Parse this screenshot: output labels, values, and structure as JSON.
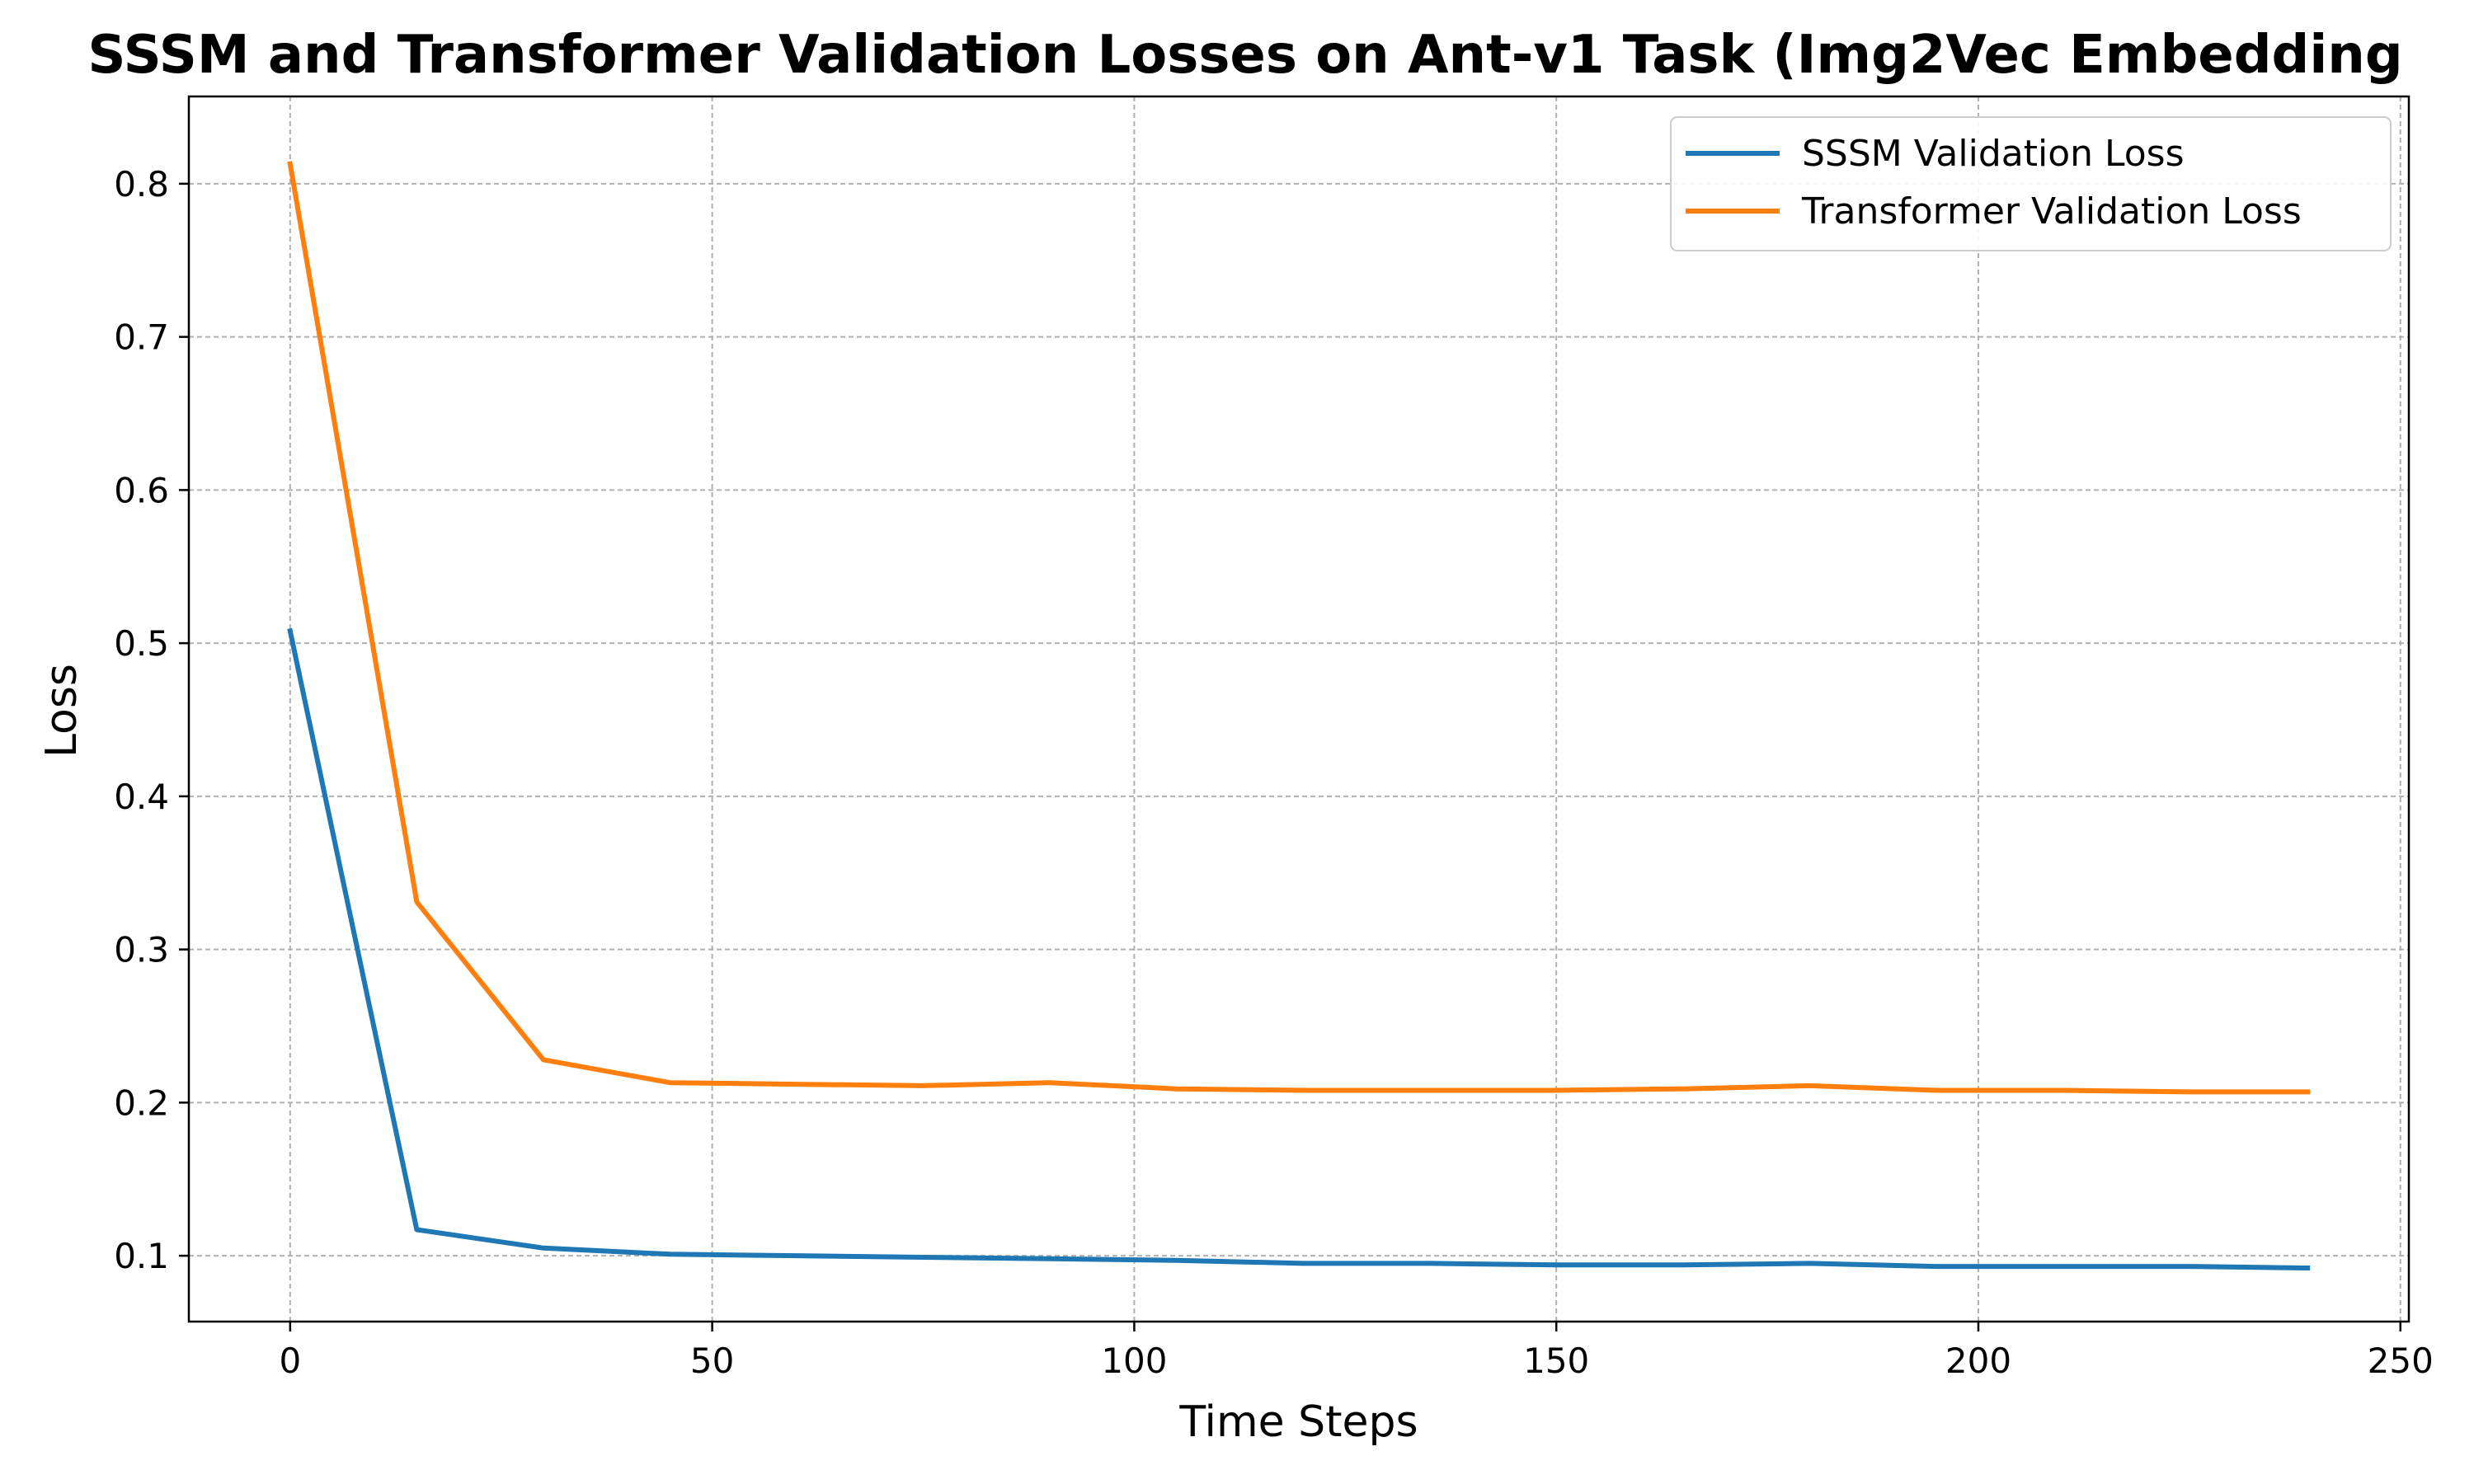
{
  "chart_data": {
    "type": "line",
    "title": "SSSM and Transformer Validation Losses on Ant-v1 Task (Img2Vec Embedding",
    "xlabel": "Time Steps",
    "ylabel": "Loss",
    "xlim": [
      -12,
      251
    ],
    "ylim": [
      0.057,
      0.857
    ],
    "xticks": [
      0,
      50,
      100,
      150,
      200,
      250
    ],
    "yticks": [
      0.1,
      0.2,
      0.3,
      0.4,
      0.5,
      0.6,
      0.7,
      0.8
    ],
    "xtick_labels": [
      "0",
      "50",
      "100",
      "150",
      "200",
      "250"
    ],
    "ytick_labels": [
      "0.1",
      "0.2",
      "0.3",
      "0.4",
      "0.5",
      "0.6",
      "0.7",
      "0.8"
    ],
    "grid": true,
    "legend_position": "top-right",
    "x": [
      0,
      15,
      30,
      45,
      60,
      75,
      90,
      105,
      120,
      135,
      150,
      165,
      180,
      195,
      210,
      225,
      239
    ],
    "series": [
      {
        "name": "SSSM Validation Loss",
        "color": "#1f77b4",
        "values": [
          0.508,
          0.117,
          0.105,
          0.101,
          0.1,
          0.099,
          0.098,
          0.097,
          0.095,
          0.095,
          0.094,
          0.094,
          0.095,
          0.093,
          0.093,
          0.093,
          0.092
        ]
      },
      {
        "name": "Transformer Validation Loss",
        "color": "#ff7f0e",
        "values": [
          0.813,
          0.331,
          0.228,
          0.213,
          0.212,
          0.211,
          0.213,
          0.209,
          0.208,
          0.208,
          0.208,
          0.209,
          0.211,
          0.208,
          0.208,
          0.207,
          0.207
        ]
      }
    ]
  }
}
